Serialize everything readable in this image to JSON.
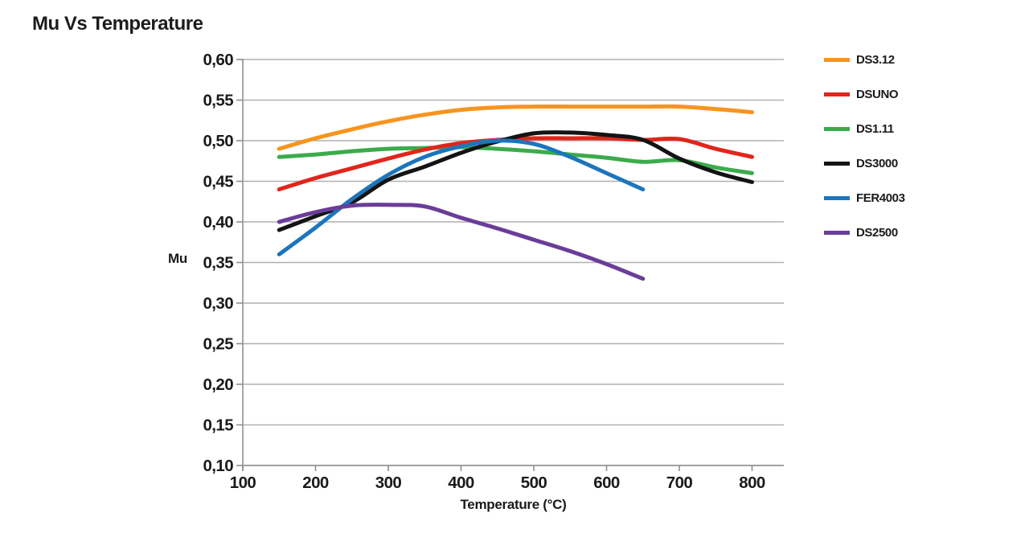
{
  "title": "Mu Vs Temperature",
  "colors": {
    "grid": "#b0b0b0",
    "axis": "#8f8f8f",
    "text": "#1a1a1a"
  },
  "chart_data": {
    "type": "line",
    "title": "Mu Vs Temperature",
    "xlabel": "Temperature (°C)",
    "ylabel": "Mu",
    "x": [
      150,
      200,
      250,
      300,
      350,
      400,
      450,
      500,
      550,
      600,
      650,
      700,
      750,
      800
    ],
    "x_ticks": [
      100,
      200,
      300,
      400,
      500,
      600,
      700,
      800
    ],
    "x_tick_labels": [
      "100",
      "200",
      "300",
      "400",
      "500",
      "600",
      "700",
      "800"
    ],
    "y_ticks": [
      0.6,
      0.55,
      0.5,
      0.45,
      0.4,
      0.35,
      0.3,
      0.25,
      0.2,
      0.15,
      0.1
    ],
    "y_tick_labels": [
      "0,60",
      "0,55",
      "0,50",
      "0,45",
      "0,40",
      "0,35",
      "0,30",
      "0,25",
      "0,20",
      "0,15",
      "0,10"
    ],
    "xlim": [
      100,
      845
    ],
    "ylim": [
      0.1,
      0.6
    ],
    "grid": "horizontal",
    "legend_position": "right",
    "decimal_separator": ",",
    "series": [
      {
        "name": "DS3.12",
        "color": "#f7941e",
        "values": [
          0.49,
          0.503,
          0.514,
          0.524,
          0.532,
          0.538,
          0.541,
          0.542,
          0.542,
          0.542,
          0.542,
          0.542,
          0.539,
          0.535
        ]
      },
      {
        "name": "DSUNO",
        "color": "#e1251b",
        "values": [
          0.44,
          0.454,
          0.466,
          0.478,
          0.489,
          0.497,
          0.501,
          0.503,
          0.503,
          0.503,
          0.501,
          0.502,
          0.49,
          0.48
        ]
      },
      {
        "name": "DS1.11",
        "color": "#3bab4b",
        "values": [
          0.48,
          0.483,
          0.487,
          0.49,
          0.491,
          0.492,
          0.49,
          0.487,
          0.483,
          0.479,
          0.474,
          0.476,
          0.467,
          0.46
        ]
      },
      {
        "name": "DS3000",
        "color": "#141414",
        "values": [
          0.39,
          0.407,
          0.424,
          0.452,
          0.468,
          0.485,
          0.499,
          0.509,
          0.51,
          0.507,
          0.501,
          0.478,
          0.461,
          0.449
        ]
      },
      {
        "name": "FER4003",
        "color": "#1c75bc",
        "values": [
          0.36,
          0.393,
          0.428,
          0.458,
          0.48,
          0.493,
          0.5,
          0.496,
          0.48,
          0.46,
          0.44,
          null,
          null,
          null
        ]
      },
      {
        "name": "DS2500",
        "color": "#6a3d98",
        "values": [
          0.4,
          0.412,
          0.42,
          0.421,
          0.419,
          0.405,
          0.392,
          0.378,
          0.364,
          0.348,
          0.33,
          null,
          null,
          null
        ]
      }
    ],
    "draw_order": [
      "DS1.11",
      "DS3.12",
      "DSUNO",
      "DS3000",
      "FER4003",
      "DS2500"
    ]
  }
}
